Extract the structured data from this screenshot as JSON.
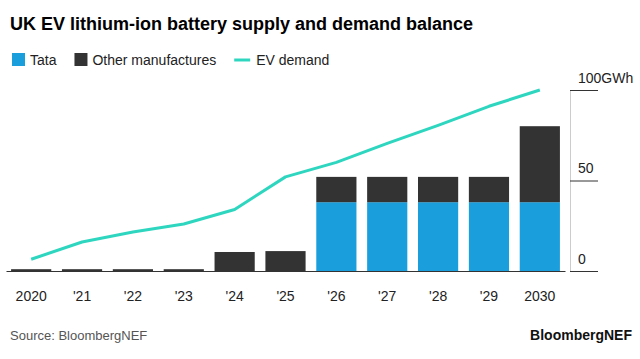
{
  "chart_data": {
    "type": "bar",
    "title": "UK EV lithium-ion battery supply and demand balance",
    "source": "Source: BloombergNEF",
    "credit": "BloombergNEF",
    "categories": [
      "2020",
      "'21",
      "'22",
      "'23",
      "'24",
      "'25",
      "'26",
      "'27",
      "'28",
      "'29",
      "2030"
    ],
    "stacked": true,
    "series": [
      {
        "name": "Tata",
        "type": "bar",
        "color": "#1a9fdc",
        "values": [
          0,
          0,
          0,
          0,
          0,
          0,
          38,
          38,
          38,
          38,
          38
        ]
      },
      {
        "name": "Other manufactures",
        "type": "bar",
        "color": "#333333",
        "values": [
          1,
          1,
          1,
          1,
          10.5,
          11,
          14,
          14,
          14,
          14,
          42
        ]
      },
      {
        "name": "EV demand",
        "type": "line",
        "color": "#2ed6c0",
        "values": [
          6.5,
          16,
          21.5,
          26,
          34,
          52,
          60,
          70.5,
          80.5,
          91,
          100
        ]
      }
    ],
    "ylim": [
      0,
      100
    ],
    "yticks": [
      0,
      50,
      {
        "value": 100,
        "label": "100GWh"
      }
    ],
    "legend": "top-left",
    "grid": false
  }
}
